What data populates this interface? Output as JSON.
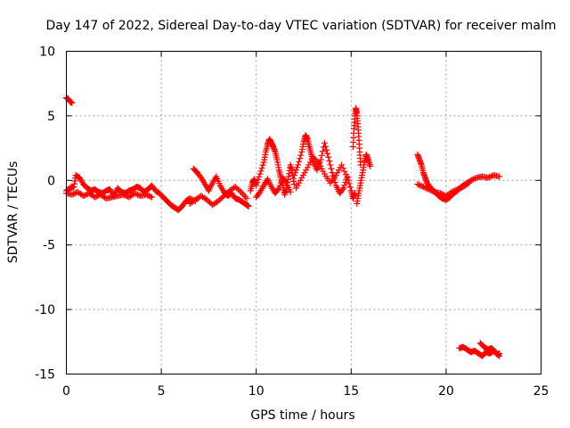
{
  "chart_data": {
    "type": "scatter",
    "title": "Day 147 of 2022, Sidereal Day-to-day VTEC variation (SDTVAR) for receiver malm",
    "xlabel": "GPS time / hours",
    "ylabel": "SDTVAR / TECUs",
    "xlim": [
      0,
      25
    ],
    "ylim": [
      -15,
      10
    ],
    "xticks": [
      0,
      5,
      10,
      15,
      20,
      25
    ],
    "yticks": [
      -15,
      -10,
      -5,
      0,
      5,
      10
    ],
    "grid": true,
    "marker": "+",
    "color": "#ff0000",
    "series": [
      {
        "name": "SDTVAR",
        "segments": [
          {
            "x": [
              0.0,
              0.1,
              0.2,
              0.3
            ],
            "y": [
              6.4,
              6.3,
              6.1,
              6.0
            ]
          },
          {
            "x": [
              0.0,
              0.2,
              0.4,
              0.5,
              0.7,
              0.9,
              1.1,
              1.3,
              1.5,
              1.7,
              1.9,
              2.1,
              2.3,
              2.5,
              2.7,
              2.9,
              3.1,
              3.3,
              3.5,
              3.7,
              3.9,
              4.1,
              4.3,
              4.5,
              4.7,
              4.9,
              5.1,
              5.3,
              5.5,
              5.7,
              5.9,
              6.1,
              6.3,
              6.5,
              6.8
            ],
            "y": [
              -0.8,
              -0.6,
              -0.5,
              0.4,
              0.2,
              -0.3,
              -0.6,
              -0.8,
              -0.7,
              -0.9,
              -1.0,
              -0.8,
              -0.7,
              -1.2,
              -0.6,
              -0.9,
              -1.0,
              -0.8,
              -0.7,
              -0.5,
              -0.6,
              -0.9,
              -0.7,
              -0.4,
              -0.8,
              -1.0,
              -1.3,
              -1.6,
              -1.9,
              -2.1,
              -2.3,
              -2.0,
              -1.6,
              -1.4,
              -1.6
            ]
          },
          {
            "x": [
              0.0,
              0.3,
              0.6,
              0.9,
              1.2,
              1.5,
              1.8,
              2.1,
              2.4,
              2.7,
              3.0,
              3.3,
              3.6,
              3.9,
              4.2,
              4.5
            ],
            "y": [
              -1.0,
              -1.1,
              -0.9,
              -1.2,
              -1.0,
              -1.3,
              -1.1,
              -1.4,
              -1.3,
              -1.2,
              -1.1,
              -1.3,
              -1.0,
              -1.2,
              -1.1,
              -1.3
            ]
          },
          {
            "x": [
              6.7,
              6.9,
              7.1,
              7.3,
              7.5,
              7.7,
              7.9,
              8.1,
              8.3,
              8.5,
              8.7,
              8.9,
              9.1,
              9.3,
              9.5,
              9.6
            ],
            "y": [
              0.9,
              0.6,
              0.2,
              -0.3,
              -0.8,
              -0.2,
              0.3,
              -0.4,
              -0.9,
              -1.2,
              -1.0,
              -1.4,
              -1.5,
              -1.7,
              -1.9,
              -2.0
            ]
          },
          {
            "x": [
              6.5,
              6.8,
              7.1,
              7.4,
              7.7,
              8.0,
              8.3,
              8.6,
              8.9,
              9.2,
              9.5
            ],
            "y": [
              -1.8,
              -1.5,
              -1.2,
              -1.5,
              -1.9,
              -1.6,
              -1.2,
              -0.8,
              -0.5,
              -0.9,
              -1.4
            ]
          },
          {
            "x": [
              9.7,
              9.8,
              9.9,
              10.0,
              10.2,
              10.4,
              10.5,
              10.6,
              10.7,
              10.8,
              10.9,
              11.0,
              11.1,
              11.2,
              11.3,
              11.4,
              11.5,
              11.6,
              11.7,
              11.8,
              11.9,
              12.0
            ],
            "y": [
              -0.8,
              -0.2,
              0.1,
              -0.4,
              0.5,
              1.4,
              2.2,
              2.8,
              3.2,
              2.9,
              2.6,
              2.2,
              1.6,
              0.8,
              0.2,
              -0.4,
              -1.1,
              -0.6,
              0.3,
              1.2,
              0.6,
              -0.3
            ]
          },
          {
            "x": [
              10.0,
              10.2,
              10.4,
              10.6,
              10.8,
              11.0,
              11.2,
              11.4,
              11.6,
              11.8
            ],
            "y": [
              -1.3,
              -0.9,
              -0.4,
              0.1,
              -0.5,
              -1.0,
              -0.6,
              0.2,
              -0.2,
              -0.9
            ]
          },
          {
            "x": [
              12.0,
              12.2,
              12.4,
              12.5,
              12.6,
              12.7,
              12.8,
              12.9,
              13.0,
              13.2,
              13.4,
              13.6,
              13.8,
              14.0,
              14.2,
              14.4,
              14.6,
              14.8,
              15.0,
              15.1,
              15.2
            ],
            "y": [
              0.4,
              1.2,
              2.2,
              3.0,
              3.5,
              3.2,
              2.6,
              2.0,
              1.4,
              0.8,
              1.6,
              2.9,
              1.8,
              0.6,
              -0.4,
              -1.0,
              -0.6,
              0.3,
              -0.8,
              -1.4,
              -1.0
            ]
          },
          {
            "x": [
              12.1,
              12.4,
              12.7,
              13.0,
              13.3,
              13.6,
              13.9,
              14.2,
              14.5,
              14.8
            ],
            "y": [
              -0.6,
              0.2,
              1.0,
              1.8,
              1.3,
              0.5,
              -0.2,
              0.4,
              1.2,
              0.2
            ]
          },
          {
            "x": [
              15.1,
              15.15,
              15.2,
              15.25,
              15.3,
              15.35,
              15.4,
              15.45,
              15.5
            ],
            "y": [
              2.6,
              4.0,
              5.0,
              5.6,
              5.2,
              4.4,
              3.4,
              2.2,
              1.2
            ]
          },
          {
            "x": [
              15.3,
              15.4,
              15.5,
              15.6,
              15.7,
              15.8,
              15.9,
              16.0
            ],
            "y": [
              -1.8,
              -1.0,
              -0.2,
              0.6,
              1.4,
              2.0,
              1.6,
              1.1
            ]
          },
          {
            "x": [
              18.5,
              18.6,
              18.7,
              18.8,
              18.9,
              19.0,
              19.2,
              19.4,
              19.6,
              19.8,
              20.0,
              20.2,
              20.4,
              20.6,
              20.8,
              21.0,
              21.3,
              21.6,
              21.9,
              22.2,
              22.5,
              22.8
            ],
            "y": [
              2.0,
              1.6,
              1.2,
              0.6,
              0.2,
              -0.2,
              -0.6,
              -0.9,
              -1.2,
              -1.4,
              -1.5,
              -1.3,
              -1.0,
              -0.8,
              -0.5,
              -0.3,
              0.0,
              0.2,
              0.3,
              0.2,
              0.4,
              0.3
            ]
          },
          {
            "x": [
              18.5,
              18.8,
              19.1,
              19.4,
              19.7,
              20.0,
              20.3,
              20.6,
              20.9,
              21.2
            ],
            "y": [
              -0.3,
              -0.5,
              -0.7,
              -0.9,
              -1.0,
              -1.2,
              -0.9,
              -0.7,
              -0.5,
              -0.2
            ]
          },
          {
            "x": [
              20.7,
              20.9,
              21.1,
              21.3,
              21.5,
              21.7,
              21.9,
              22.1,
              22.3,
              22.5,
              22.7,
              22.8
            ],
            "y": [
              -13.0,
              -12.9,
              -13.1,
              -13.3,
              -13.2,
              -13.4,
              -13.6,
              -13.3,
              -13.4,
              -13.2,
              -13.5,
              -13.4
            ]
          },
          {
            "x": [
              21.8,
              22.0,
              22.2,
              22.4,
              22.6,
              22.8
            ],
            "y": [
              -12.6,
              -12.9,
              -13.1,
              -13.0,
              -13.3,
              -13.6
            ]
          }
        ]
      }
    ]
  }
}
